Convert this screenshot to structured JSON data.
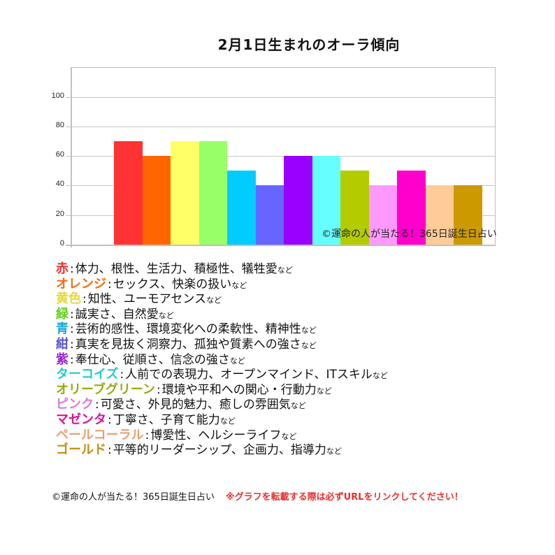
{
  "chart_data": {
    "type": "bar",
    "title": "2月1日生まれのオーラ傾向",
    "xlabel": "",
    "ylabel": "",
    "ylim": [
      0,
      120
    ],
    "yticks": [
      0,
      20,
      40,
      60,
      80,
      100
    ],
    "grid": true,
    "legend": "none",
    "categories": [
      "赤",
      "オレンジ",
      "黄色",
      "緑",
      "青",
      "紺",
      "紫",
      "ターコイズ",
      "オリーブグリーン",
      "ピンク",
      "マゼンタ",
      "ペールコーラル",
      "ゴールド"
    ],
    "values": [
      70,
      60,
      70,
      70,
      50,
      40,
      60,
      60,
      50,
      40,
      50,
      40,
      40
    ],
    "colors": [
      "#ff3333",
      "#ff6600",
      "#ffff66",
      "#99ff66",
      "#00ccff",
      "#6666ff",
      "#9900ff",
      "#66ffff",
      "#b2cc00",
      "#ff99ff",
      "#ff00cc",
      "#ffcc99",
      "#cc9900"
    ],
    "annotations": [
      "©運命の人が当たる！365日誕生日占い"
    ]
  },
  "title": "2月1日生まれのオーラ傾向",
  "axis": {
    "ticks": [
      "100",
      "80",
      "60",
      "40",
      "20",
      "0"
    ]
  },
  "watermark": "©運命の人が当たる！365日誕生日占い",
  "legend": [
    {
      "name": "赤",
      "color": "#e8302e",
      "text": "体力、根性、生活力、積極性、犠牲愛",
      "suffix": "など"
    },
    {
      "name": "オレンジ",
      "color": "#f07010",
      "text": "セックス、快楽の扱い",
      "suffix": "など"
    },
    {
      "name": "黄色",
      "color": "#e6d83a",
      "text": "知性、ユーモアセンス",
      "suffix": "など"
    },
    {
      "name": "緑",
      "color": "#66cc22",
      "text": "誠実さ、自然愛",
      "suffix": "など"
    },
    {
      "name": "青",
      "color": "#1aa8e0",
      "text": "芸術的感性、環境変化への柔軟性、精神性",
      "suffix": "など"
    },
    {
      "name": "紺",
      "color": "#5555cc",
      "text": "真実を見抜く洞察力、孤独や質素への強さ",
      "suffix": "など"
    },
    {
      "name": "紫",
      "color": "#9922dd",
      "text": "奉仕心、従順さ、信念の強さ",
      "suffix": "など"
    },
    {
      "name": "ターコイズ",
      "color": "#22cccc",
      "text": "人前での表現力、オープンマインド、ITスキル",
      "suffix": "など"
    },
    {
      "name": "オリーブグリーン",
      "color": "#99aa11",
      "text": "環境や平和への関心・行動力",
      "suffix": "など"
    },
    {
      "name": "ピンク",
      "color": "#dd77dd",
      "text": "可愛さ、外見的魅力、癒しの雰囲気",
      "suffix": "など"
    },
    {
      "name": "マゼンタ",
      "color": "#dd1199",
      "text": "丁寧さ、子育て能力",
      "suffix": "など"
    },
    {
      "name": "ペールコーラル",
      "color": "#e8a070",
      "text": "博愛性、ヘルシーライフ",
      "suffix": "など"
    },
    {
      "name": "ゴールド",
      "color": "#c09010",
      "text": "平等的リーダーシップ、企画力、指導力",
      "suffix": "など"
    }
  ],
  "footer": {
    "copyright": "©運命の人が当たる！365日誕生日占い",
    "note": "※グラフを転載する際は必ずURLをリンクしてください！"
  }
}
